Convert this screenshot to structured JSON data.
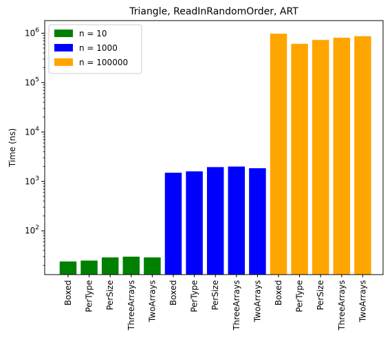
{
  "chart_data": {
    "type": "bar",
    "title": "Triangle, ReadInRandomOrder, ART",
    "xlabel": "",
    "ylabel": "Time (ns)",
    "yscale": "log",
    "ylim": [
      13,
      1800000
    ],
    "y_tick_labels": [
      {
        "value": 100,
        "base": "10",
        "exp": "2"
      },
      {
        "value": 1000,
        "base": "10",
        "exp": "3"
      },
      {
        "value": 10000,
        "base": "10",
        "exp": "4"
      },
      {
        "value": 100000,
        "base": "10",
        "exp": "5"
      },
      {
        "value": 1000000,
        "base": "10",
        "exp": "6"
      }
    ],
    "categories": [
      "Boxed",
      "PerType",
      "PerSize",
      "ThreeArrays",
      "TwoArrays"
    ],
    "series": [
      {
        "name": "n = 10",
        "color": "#008000",
        "values": [
          24,
          25,
          29,
          30,
          29
        ]
      },
      {
        "name": "n = 1000",
        "color": "#0000ff",
        "values": [
          1500,
          1600,
          1950,
          2000,
          1850
        ]
      },
      {
        "name": "n = 100000",
        "color": "#ffa500",
        "values": [
          980000,
          610000,
          730000,
          810000,
          870000
        ]
      }
    ],
    "legend": "top-left",
    "grid": false
  }
}
